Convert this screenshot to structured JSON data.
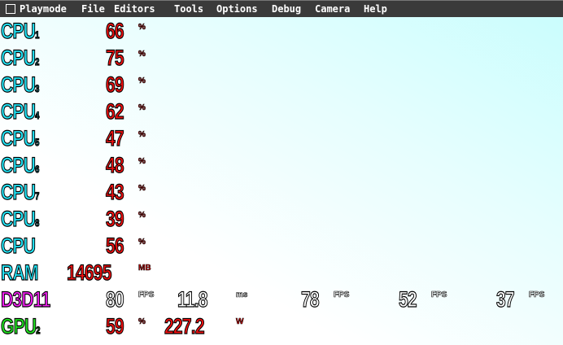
{
  "menu": [
    "Playmode",
    "File",
    "Editors",
    "Tools",
    "Options",
    "Debug",
    "Camera",
    "Help"
  ],
  "cpus": [
    {
      "label": "CPU",
      "sub": "1",
      "value": "66",
      "unit": "%"
    },
    {
      "label": "CPU",
      "sub": "2",
      "value": "75",
      "unit": "%"
    },
    {
      "label": "CPU",
      "sub": "3",
      "value": "69",
      "unit": "%"
    },
    {
      "label": "CPU",
      "sub": "4",
      "value": "62",
      "unit": "%"
    },
    {
      "label": "CPU",
      "sub": "5",
      "value": "47",
      "unit": "%"
    },
    {
      "label": "CPU",
      "sub": "6",
      "value": "48",
      "unit": "%"
    },
    {
      "label": "CPU",
      "sub": "7",
      "value": "43",
      "unit": "%"
    },
    {
      "label": "CPU",
      "sub": "8",
      "value": "39",
      "unit": "%"
    },
    {
      "label": "CPU",
      "sub": "",
      "value": "56",
      "unit": "%"
    }
  ],
  "ram": {
    "label": "RAM",
    "value": "14695",
    "unit": "MB"
  },
  "d3d": {
    "label": "D3D11",
    "fps": "80",
    "fps_unit": "FPS",
    "ms": "11.8",
    "ms_unit": "ms",
    "f2": "78",
    "f3": "52",
    "f4": "37"
  },
  "gpu": {
    "label": "GPU",
    "sub": "2",
    "value": "59",
    "unit": "%",
    "power": "227.2",
    "power_unit": "W"
  }
}
